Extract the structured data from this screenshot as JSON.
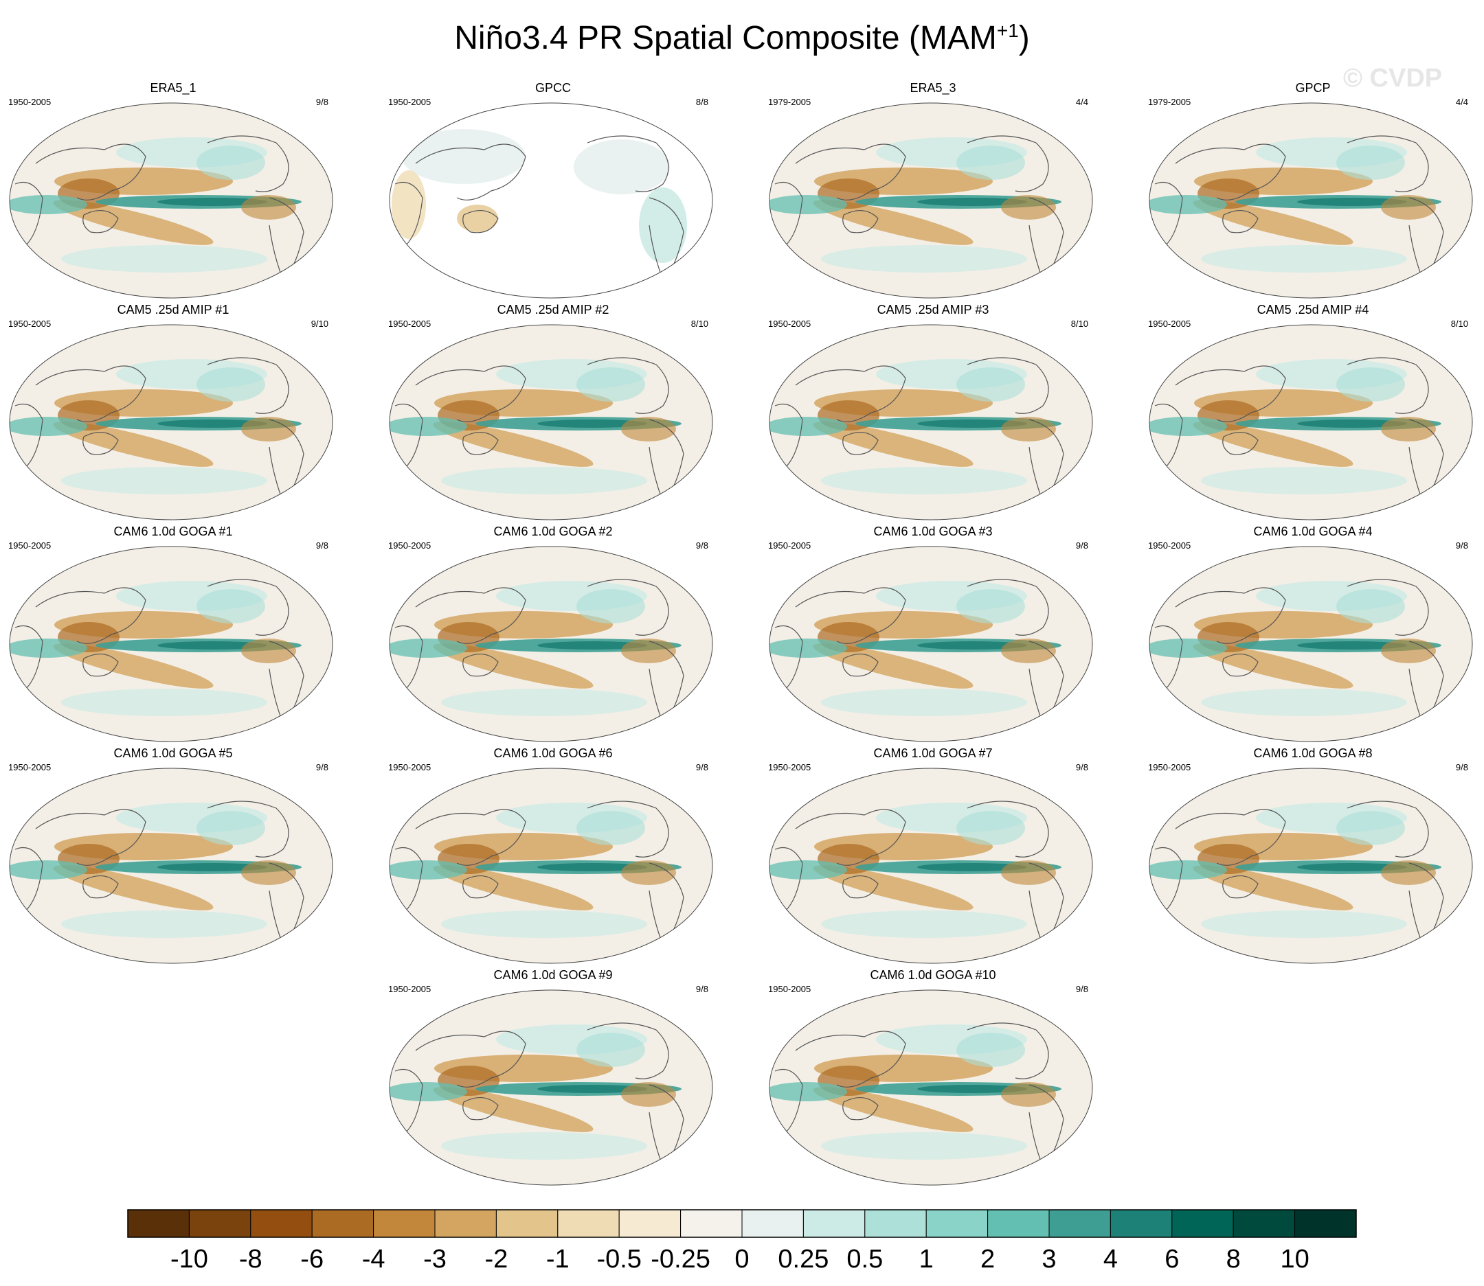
{
  "title": {
    "main": "Niño3.4 PR Spatial Composite (MAM",
    "sup": "+1",
    "close": ")"
  },
  "watermark": "© CVDP",
  "chart_data": {
    "type": "heatmap",
    "title": "Niño3.4 PR Spatial Composite (MAM+1)",
    "projection": "global map (Pacific-centered)",
    "panels": [
      {
        "name": "ERA5_1",
        "period": "1950-2005",
        "count": "9/8"
      },
      {
        "name": "GPCC",
        "period": "1950-2005",
        "count": "8/8"
      },
      {
        "name": "ERA5_3",
        "period": "1979-2005",
        "count": "4/4"
      },
      {
        "name": "GPCP",
        "period": "1979-2005",
        "count": "4/4"
      },
      {
        "name": "CAM5 .25d AMIP #1",
        "period": "1950-2005",
        "count": "9/10"
      },
      {
        "name": "CAM5 .25d AMIP #2",
        "period": "1950-2005",
        "count": "8/10"
      },
      {
        "name": "CAM5 .25d AMIP #3",
        "period": "1950-2005",
        "count": "8/10"
      },
      {
        "name": "CAM5 .25d AMIP #4",
        "period": "1950-2005",
        "count": "8/10"
      },
      {
        "name": "CAM6 1.0d GOGA #1",
        "period": "1950-2005",
        "count": "9/8"
      },
      {
        "name": "CAM6 1.0d GOGA #2",
        "period": "1950-2005",
        "count": "9/8"
      },
      {
        "name": "CAM6 1.0d GOGA #3",
        "period": "1950-2005",
        "count": "9/8"
      },
      {
        "name": "CAM6 1.0d GOGA #4",
        "period": "1950-2005",
        "count": "9/8"
      },
      {
        "name": "CAM6 1.0d GOGA #5",
        "period": "1950-2005",
        "count": "9/8"
      },
      {
        "name": "CAM6 1.0d GOGA #6",
        "period": "1950-2005",
        "count": "9/8"
      },
      {
        "name": "CAM6 1.0d GOGA #7",
        "period": "1950-2005",
        "count": "9/8"
      },
      {
        "name": "CAM6 1.0d GOGA #8",
        "period": "1950-2005",
        "count": "9/8"
      },
      {
        "name": "CAM6 1.0d GOGA #9",
        "period": "1950-2005",
        "count": "9/8"
      },
      {
        "name": "CAM6 1.0d GOGA #10",
        "period": "1950-2005",
        "count": "9/8"
      }
    ],
    "colorbar": {
      "levels": [
        "-10",
        "-8",
        "-6",
        "-4",
        "-3",
        "-2",
        "-1",
        "-0.5",
        "-0.25",
        "0",
        "0.25",
        "0.5",
        "1",
        "2",
        "3",
        "4",
        "6",
        "8",
        "10"
      ],
      "colors": [
        "#5a3009",
        "#7a420c",
        "#944f10",
        "#ab6b22",
        "#c2873a",
        "#d3a560",
        "#e3c58c",
        "#efdcb4",
        "#f6ead2",
        "#f5f2ec",
        "#e8f1f0",
        "#cdebe6",
        "#ace0d9",
        "#8ad3c8",
        "#63bfb1",
        "#3e9e93",
        "#1e8177",
        "#006557",
        "#004a3d",
        "#00332a"
      ]
    }
  }
}
